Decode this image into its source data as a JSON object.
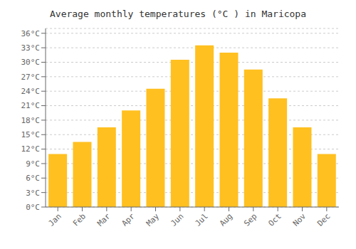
{
  "chart_data": {
    "type": "bar",
    "title": "Average monthly temperatures (°C ) in Maricopa",
    "categories": [
      "Jan",
      "Feb",
      "Mar",
      "Apr",
      "May",
      "Jun",
      "Jul",
      "Aug",
      "Sep",
      "Oct",
      "Nov",
      "Dec"
    ],
    "values": [
      11,
      13.5,
      16.5,
      20,
      24.5,
      30.5,
      33.5,
      32,
      28.5,
      22.5,
      16.5,
      11
    ],
    "color": "#FFC020",
    "ylim": [
      0,
      37
    ],
    "yticks": [
      {
        "value": 0,
        "label": "0°C"
      },
      {
        "value": 3,
        "label": "3°C"
      },
      {
        "value": 6,
        "label": "6°C"
      },
      {
        "value": 9,
        "label": "9°C"
      },
      {
        "value": 12,
        "label": "12°C"
      },
      {
        "value": 15,
        "label": "15°C"
      },
      {
        "value": 18,
        "label": "18°C"
      },
      {
        "value": 21,
        "label": "21°C"
      },
      {
        "value": 24,
        "label": "24°C"
      },
      {
        "value": 27,
        "label": "27°C"
      },
      {
        "value": 30,
        "label": "30°C"
      },
      {
        "value": 33,
        "label": "33°C"
      },
      {
        "value": 36,
        "label": "36°C"
      }
    ],
    "grid": true
  }
}
